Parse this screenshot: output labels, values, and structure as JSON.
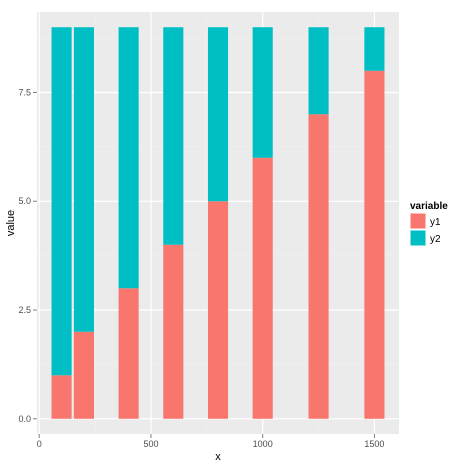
{
  "chart_data": {
    "type": "bar",
    "stacked": true,
    "xlabel": "x",
    "ylabel": "value",
    "xlim": [
      -10,
      1610
    ],
    "ylim": [
      -0.35,
      9.35
    ],
    "x_ticks": [
      0,
      500,
      1000,
      1500
    ],
    "x_tick_labels": [
      "0",
      "500",
      "1000",
      "1500"
    ],
    "y_ticks": [
      0,
      2.5,
      5,
      7.5
    ],
    "y_tick_labels": [
      "0.0",
      "2.5",
      "5.0",
      "7.5"
    ],
    "grid": true,
    "legend_position": "right",
    "legend_title": "variable",
    "x": [
      100,
      200,
      400,
      600,
      800,
      1000,
      1250,
      1500
    ],
    "bar_width": 90,
    "series": [
      {
        "name": "y1",
        "color": "#F8766D",
        "values": [
          1,
          2,
          3,
          4,
          5,
          6,
          7,
          8
        ]
      },
      {
        "name": "y2",
        "color": "#00BFC4",
        "values": [
          8,
          7,
          6,
          5,
          4,
          3,
          2,
          1
        ]
      }
    ]
  },
  "colors": {
    "panel_background": "#EBEBEB",
    "grid_major": "#FFFFFF",
    "grid_minor": "#F2F2F2"
  }
}
